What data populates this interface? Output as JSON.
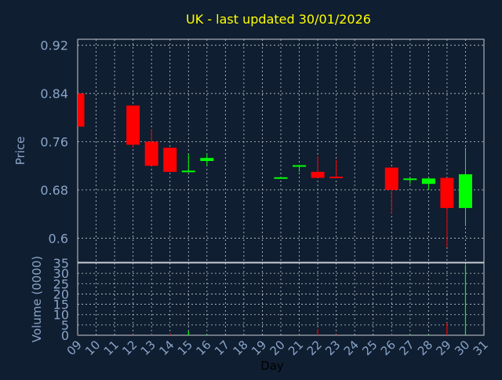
{
  "title": "UK - last updated 30/01/2026",
  "colors": {
    "background": "#0f1e30",
    "grid": "#c8ccd4",
    "axis_text": "#8aa4c8",
    "title": "#ffff00",
    "xlabel": "#000000",
    "up": "#00ff00",
    "down": "#ff0000"
  },
  "chart_data": [
    {
      "type": "candlestick",
      "ylabel": "Price",
      "ylim": [
        0.56,
        0.93
      ],
      "yticks": [
        "0.6",
        "0.68",
        "0.76",
        "0.84",
        "0.92"
      ],
      "grid": true,
      "candles": [
        {
          "day": 9,
          "open": 0.84,
          "close": 0.785,
          "high": 0.84,
          "low": 0.785
        },
        {
          "day": 12,
          "open": 0.82,
          "close": 0.755,
          "high": 0.82,
          "low": 0.75
        },
        {
          "day": 13,
          "open": 0.76,
          "close": 0.72,
          "high": 0.78,
          "low": 0.72
        },
        {
          "day": 14,
          "open": 0.75,
          "close": 0.71,
          "high": 0.75,
          "low": 0.71
        },
        {
          "day": 15,
          "open": 0.71,
          "close": 0.712,
          "high": 0.74,
          "low": 0.71
        },
        {
          "day": 16,
          "open": 0.728,
          "close": 0.733,
          "high": 0.74,
          "low": 0.72
        },
        {
          "day": 20,
          "open": 0.699,
          "close": 0.701,
          "high": 0.701,
          "low": 0.699
        },
        {
          "day": 21,
          "open": 0.719,
          "close": 0.721,
          "high": 0.721,
          "low": 0.71
        },
        {
          "day": 22,
          "open": 0.71,
          "close": 0.7,
          "high": 0.736,
          "low": 0.7
        },
        {
          "day": 23,
          "open": 0.702,
          "close": 0.7,
          "high": 0.73,
          "low": 0.7
        },
        {
          "day": 26,
          "open": 0.717,
          "close": 0.68,
          "high": 0.717,
          "low": 0.64
        },
        {
          "day": 27,
          "open": 0.697,
          "close": 0.699,
          "high": 0.699,
          "low": 0.69
        },
        {
          "day": 28,
          "open": 0.69,
          "close": 0.699,
          "high": 0.699,
          "low": 0.68
        },
        {
          "day": 29,
          "open": 0.7,
          "close": 0.65,
          "high": 0.7,
          "low": 0.585
        },
        {
          "day": 30,
          "open": 0.65,
          "close": 0.706,
          "high": 0.75,
          "low": 0.62
        }
      ]
    },
    {
      "type": "bar",
      "xlabel": "Day",
      "ylabel": "Volume (0000)",
      "ylim": [
        0,
        35
      ],
      "yticks": [
        "0",
        "5",
        "10",
        "15",
        "20",
        "25",
        "30",
        "35"
      ],
      "grid": true,
      "categories": [
        "09",
        "10",
        "11",
        "12",
        "13",
        "14",
        "15",
        "16",
        "17",
        "18",
        "19",
        "20",
        "21",
        "22",
        "23",
        "24",
        "25",
        "26",
        "27",
        "28",
        "29",
        "30",
        "31"
      ],
      "bars": [
        {
          "day": 9,
          "value": 0.2,
          "dir": "down"
        },
        {
          "day": 12,
          "value": 0.3,
          "dir": "down"
        },
        {
          "day": 13,
          "value": 0.3,
          "dir": "down"
        },
        {
          "day": 14,
          "value": 1,
          "dir": "down"
        },
        {
          "day": 15,
          "value": 2,
          "dir": "up"
        },
        {
          "day": 16,
          "value": 0.3,
          "dir": "up"
        },
        {
          "day": 21,
          "value": 0.5,
          "dir": "up"
        },
        {
          "day": 22,
          "value": 3,
          "dir": "down"
        },
        {
          "day": 23,
          "value": 0.3,
          "dir": "down"
        },
        {
          "day": 26,
          "value": 0.3,
          "dir": "down"
        },
        {
          "day": 27,
          "value": 0.3,
          "dir": "up"
        },
        {
          "day": 28,
          "value": 0.3,
          "dir": "up"
        },
        {
          "day": 29,
          "value": 6,
          "dir": "down"
        },
        {
          "day": 30,
          "value": 34,
          "dir": "up"
        }
      ]
    }
  ]
}
